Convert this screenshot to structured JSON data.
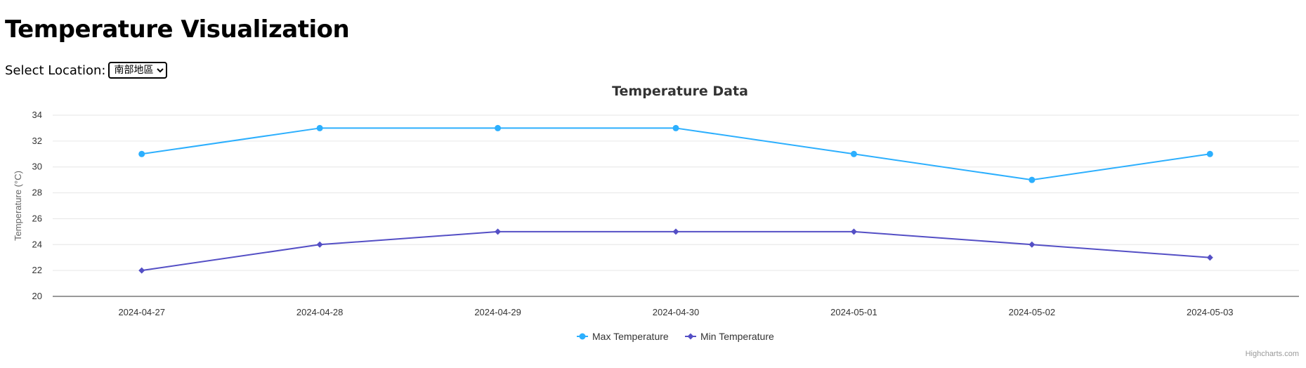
{
  "page": {
    "title": "Temperature Visualization",
    "location_label": "Select Location:",
    "location_selected": "南部地區"
  },
  "chart_data": {
    "type": "line",
    "title": "Temperature Data",
    "ylabel": "Temperature (°C)",
    "xlabel": "",
    "categories": [
      "2024-04-27",
      "2024-04-28",
      "2024-04-29",
      "2024-04-30",
      "2024-05-01",
      "2024-05-02",
      "2024-05-03"
    ],
    "ylim": [
      20,
      34
    ],
    "yticks": [
      20,
      22,
      24,
      26,
      28,
      30,
      32,
      34
    ],
    "grid": true,
    "legend": "bottom-center",
    "series": [
      {
        "name": "Max Temperature",
        "values": [
          31,
          33,
          33,
          33,
          31,
          29,
          31
        ],
        "color": "#2caffe",
        "marker": "circle"
      },
      {
        "name": "Min Temperature",
        "values": [
          22,
          24,
          25,
          25,
          25,
          24,
          23
        ],
        "color": "#544fc5",
        "marker": "diamond"
      }
    ],
    "credits": "Highcharts.com"
  }
}
